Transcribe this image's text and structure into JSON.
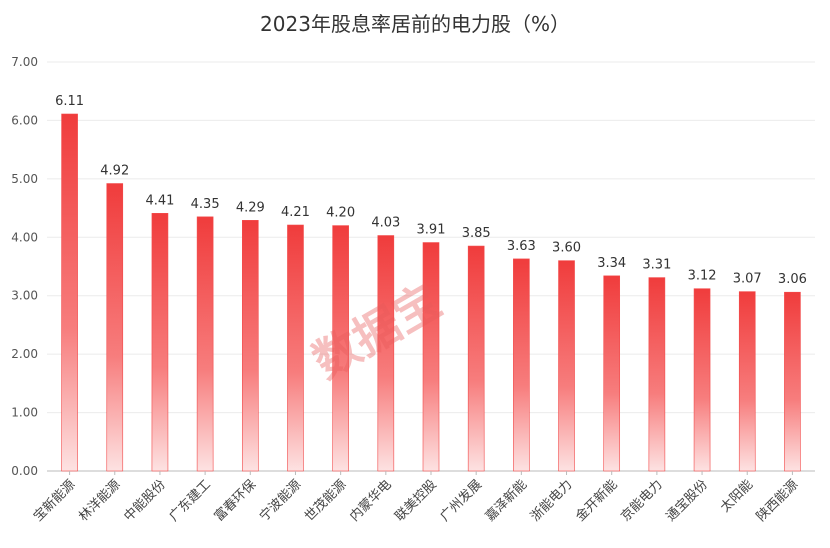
{
  "chart_data": {
    "type": "bar",
    "title": "2023年股息率居前的电力股（%）",
    "xlabel": "",
    "ylabel": "",
    "ylim": [
      0,
      7
    ],
    "yticks": [
      "0.00",
      "1.00",
      "2.00",
      "3.00",
      "4.00",
      "5.00",
      "6.00",
      "7.00"
    ],
    "grid": true,
    "categories": [
      "宝新能源",
      "林洋能源",
      "中能股份",
      "广东建工",
      "富春环保",
      "宁波能源",
      "世茂能源",
      "内蒙华电",
      "联美控股",
      "广州发展",
      "嘉泽新能",
      "浙能电力",
      "金开新能",
      "京能电力",
      "通宝股份",
      "太阳能",
      "陕西能源"
    ],
    "values": [
      6.11,
      4.92,
      4.41,
      4.35,
      4.29,
      4.21,
      4.2,
      4.03,
      3.91,
      3.85,
      3.63,
      3.6,
      3.34,
      3.31,
      3.12,
      3.07,
      3.06
    ],
    "data_labels": [
      "6.11",
      "4.92",
      "4.41",
      "4.35",
      "4.29",
      "4.21",
      "4.20",
      "4.03",
      "3.91",
      "3.85",
      "3.63",
      "3.60",
      "3.34",
      "3.31",
      "3.12",
      "3.07",
      "3.06"
    ],
    "bar_color": "#f24a4a"
  },
  "watermark": "数据宝"
}
